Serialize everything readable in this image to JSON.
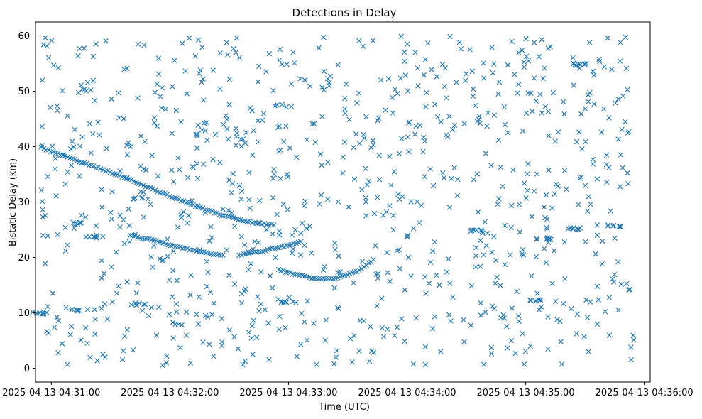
{
  "chart_data": {
    "type": "scatter",
    "title": "Detections in Delay",
    "xlabel": "Time (UTC)",
    "ylabel": "Bistatic Delay (km)",
    "x_axis": {
      "type": "time",
      "range": [
        "2025-04-13 04:30:52",
        "2025-04-13 04:36:03"
      ],
      "ticks": [
        "2025-04-13 04:31:00",
        "2025-04-13 04:32:00",
        "2025-04-13 04:33:00",
        "2025-04-13 04:34:00",
        "2025-04-13 04:35:00",
        "2025-04-13 04:36:00"
      ]
    },
    "y_axis": {
      "range": [
        -2.5,
        62.5
      ],
      "ticks": [
        0,
        10,
        20,
        30,
        40,
        50,
        60
      ]
    },
    "grid": false,
    "marker": "x",
    "series_color": "#1f77b4",
    "trail_A": {
      "t": [
        "04:30:55",
        "04:31:05",
        "04:31:15",
        "04:31:25",
        "04:31:35",
        "04:31:45",
        "04:31:55",
        "04:32:05",
        "04:32:15",
        "04:32:25",
        "04:32:35",
        "04:32:45",
        "04:32:53"
      ],
      "delay": [
        39.8,
        38.5,
        37.2,
        36.0,
        34.7,
        33.3,
        31.8,
        30.4,
        29.0,
        27.8,
        26.8,
        26.1,
        25.9
      ]
    },
    "trail_B": {
      "t": [
        "04:31:40",
        "04:31:50",
        "04:32:00",
        "04:32:10",
        "04:32:20",
        "04:32:28"
      ],
      "delay": [
        24.0,
        23.2,
        22.3,
        21.4,
        20.7,
        20.3
      ]
    },
    "trail_C": {
      "t": [
        "04:32:35",
        "04:32:45",
        "04:32:55",
        "04:33:05",
        "04:33:07"
      ],
      "delay": [
        20.4,
        21.0,
        21.8,
        22.7,
        23.0
      ]
    },
    "trail_D": {
      "t": [
        "04:32:55",
        "04:33:05",
        "04:33:15",
        "04:33:25",
        "04:33:35",
        "04:33:44"
      ],
      "delay": [
        17.8,
        16.8,
        16.1,
        16.3,
        17.5,
        19.8
      ]
    },
    "clusters": [
      {
        "t": "04:30:55",
        "delay": 10.0
      },
      {
        "t": "04:31:13",
        "delay": 26.2
      },
      {
        "t": "04:31:14",
        "delay": 10.5
      },
      {
        "t": "04:31:22",
        "delay": 23.6
      },
      {
        "t": "04:31:45",
        "delay": 11.6
      },
      {
        "t": "04:33:00",
        "delay": 12.0
      },
      {
        "t": "04:34:35",
        "delay": 24.9
      },
      {
        "t": "04:35:05",
        "delay": 12.2
      },
      {
        "t": "04:35:10",
        "delay": 23.4
      },
      {
        "t": "04:35:25",
        "delay": 25.2
      },
      {
        "t": "04:35:45",
        "delay": 25.7
      },
      {
        "t": "04:35:27",
        "delay": 54.9
      }
    ],
    "noise": {
      "description": "uniformly scattered false detections",
      "count": 900,
      "t_range": [
        "04:30:55",
        "04:35:55"
      ],
      "delay_range": [
        0.5,
        60.0
      ]
    }
  }
}
